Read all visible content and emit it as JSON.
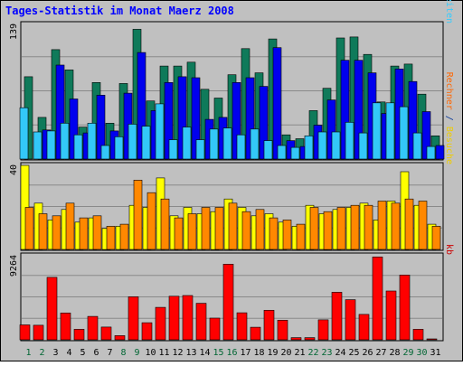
{
  "chart_data": [
    {
      "type": "bar",
      "title": "Tages-Statistik im Monat Maerz 2008",
      "panel": "top",
      "ymax_label": "139",
      "right_legend": {
        "parts": [
          {
            "text": "Anfragen",
            "color": "#006633"
          },
          {
            "text": "/",
            "color": "#003399"
          },
          {
            "text": "Dateien",
            "color": "#0000cc"
          },
          {
            "text": "/",
            "color": "#003399"
          },
          {
            "text": "Seiten",
            "color": "#33ccff"
          }
        ]
      },
      "ylim": [
        0,
        139
      ],
      "categories": [
        "1",
        "2",
        "3",
        "4",
        "5",
        "6",
        "7",
        "8",
        "9",
        "10",
        "11",
        "12",
        "13",
        "14",
        "15",
        "16",
        "17",
        "18",
        "19",
        "20",
        "21",
        "22",
        "23",
        "24",
        "25",
        "26",
        "27",
        "28",
        "29",
        "30",
        "31"
      ],
      "series": [
        {
          "name": "Anfragen",
          "color": "#0f7a5a",
          "values": [
            85,
            43,
            113,
            92,
            33,
            79,
            37,
            78,
            134,
            60,
            96,
            96,
            100,
            72,
            63,
            87,
            114,
            89,
            124,
            25,
            21,
            50,
            73,
            125,
            126,
            108,
            59,
            96,
            98,
            67,
            24
          ]
        },
        {
          "name": "Dateien",
          "color": "#0000ee",
          "values": [
            0,
            30,
            97,
            62,
            27,
            66,
            29,
            68,
            110,
            50,
            79,
            85,
            84,
            41,
            43,
            79,
            84,
            75,
            115,
            19,
            13,
            35,
            61,
            102,
            102,
            89,
            47,
            93,
            80,
            49,
            14
          ]
        },
        {
          "name": "Seiten",
          "color": "#33c8f8",
          "values": [
            53,
            28,
            29,
            37,
            25,
            37,
            14,
            23,
            36,
            34,
            57,
            20,
            33,
            20,
            31,
            32,
            25,
            31,
            19,
            14,
            12,
            24,
            28,
            28,
            38,
            27,
            58,
            58,
            54,
            27,
            13
          ]
        }
      ]
    },
    {
      "type": "bar",
      "panel": "middle",
      "ymax_label": "40",
      "right_legend": {
        "parts": [
          {
            "text": "Rechner",
            "color": "#ff6600"
          },
          {
            "text": " / ",
            "color": "#003399"
          },
          {
            "text": "Besuche",
            "color": "#eecc00"
          }
        ]
      },
      "ylim": [
        0,
        40
      ],
      "categories": [
        "1",
        "2",
        "3",
        "4",
        "5",
        "6",
        "7",
        "8",
        "9",
        "10",
        "11",
        "12",
        "13",
        "14",
        "15",
        "16",
        "17",
        "18",
        "19",
        "20",
        "21",
        "22",
        "23",
        "24",
        "25",
        "26",
        "27",
        "28",
        "29",
        "30",
        "31"
      ],
      "series": [
        {
          "name": "Besuche",
          "color": "#ffff00",
          "values": [
            40,
            22,
            14,
            19,
            13,
            15,
            10,
            11,
            21,
            20,
            34,
            16,
            20,
            17,
            18,
            24,
            20,
            16,
            17,
            13,
            11,
            21,
            17,
            19,
            20,
            22,
            14,
            23,
            37,
            21,
            12
          ]
        },
        {
          "name": "Rechner",
          "color": "#ff8800",
          "values": [
            20,
            17,
            16,
            22,
            15,
            16,
            11,
            12,
            33,
            27,
            24,
            15,
            17,
            20,
            20,
            22,
            18,
            19,
            15,
            14,
            12,
            20,
            18,
            20,
            21,
            21,
            23,
            22,
            24,
            23,
            11
          ]
        }
      ]
    },
    {
      "type": "bar",
      "panel": "bottom",
      "ymax_label": "9264",
      "right_legend": {
        "parts": [
          {
            "text": "kb",
            "color": "#cc0000"
          }
        ]
      },
      "ylim": [
        0,
        9264
      ],
      "categories": [
        "1",
        "2",
        "3",
        "4",
        "5",
        "6",
        "7",
        "8",
        "9",
        "10",
        "11",
        "12",
        "13",
        "14",
        "15",
        "16",
        "17",
        "18",
        "19",
        "20",
        "21",
        "22",
        "23",
        "24",
        "25",
        "26",
        "27",
        "28",
        "29",
        "30",
        "31"
      ],
      "series": [
        {
          "name": "kb",
          "color": "#ff0000",
          "values": [
            1640,
            1600,
            6880,
            2960,
            1160,
            2580,
            1400,
            460,
            4740,
            1880,
            3580,
            4800,
            4880,
            4020,
            2390,
            8340,
            2980,
            1380,
            3260,
            2160,
            240,
            240,
            2200,
            5240,
            4420,
            2800,
            9130,
            5380,
            7140,
            1160,
            100
          ]
        }
      ]
    }
  ],
  "x_axis": {
    "labels": [
      "1",
      "2",
      "3",
      "4",
      "5",
      "6",
      "7",
      "8",
      "9",
      "10",
      "11",
      "12",
      "13",
      "14",
      "15",
      "16",
      "17",
      "18",
      "19",
      "20",
      "21",
      "22",
      "23",
      "24",
      "25",
      "26",
      "27",
      "28",
      "29",
      "30",
      "31"
    ],
    "weekend_days": [
      "1",
      "2",
      "8",
      "9",
      "15",
      "16",
      "22",
      "23",
      "29",
      "30"
    ],
    "weekday_color": "#000000",
    "weekend_color": "#006633"
  },
  "colors": {
    "background": "#c0c0c0",
    "gridline": "#8a8a8a",
    "title": "#0000ff",
    "axis_label": "#000000"
  }
}
